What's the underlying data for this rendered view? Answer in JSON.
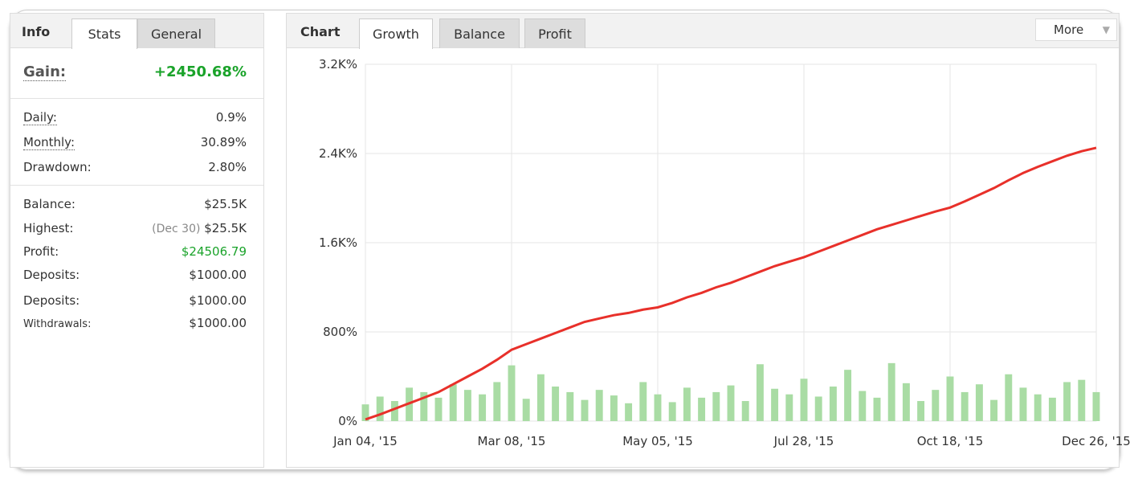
{
  "left_panel": {
    "title": "Info",
    "tabs": [
      "Stats",
      "General"
    ],
    "gain": {
      "label": "Gain:",
      "value": "+2450.68%"
    },
    "groups": [
      [
        {
          "label": "Daily:",
          "value": "0.9%"
        },
        {
          "label": "Monthly:",
          "value": "30.89%"
        },
        {
          "label": "Drawdown:",
          "value": "2.80%"
        }
      ],
      [
        {
          "label": "Balance:",
          "value": "$25.5K"
        },
        {
          "label": "Highest:",
          "note": "(Dec 30)",
          "value": "$25.5K"
        },
        {
          "label": "Profit:",
          "value": "$24506.79"
        },
        {
          "label": "Deposits:",
          "value": "$1000.00"
        },
        {
          "label": "Deposits:",
          "value": "$1000.00"
        },
        {
          "label": "Withdrawals:",
          "value": "$1000.00"
        }
      ]
    ]
  },
  "right_panel": {
    "title": "Chart",
    "tabs": [
      "Growth",
      "Balance",
      "Profit"
    ],
    "more": "More"
  },
  "chart_data": {
    "type": "line",
    "x": [
      0,
      1,
      2,
      3,
      4,
      5,
      6,
      7,
      8,
      9,
      10,
      11,
      12,
      13,
      14,
      15,
      16,
      17,
      18,
      19,
      20,
      21,
      22,
      23,
      24,
      25,
      26,
      27,
      28,
      29,
      30,
      31,
      32,
      33,
      34,
      35,
      36,
      37,
      38,
      39,
      40,
      41,
      42,
      43,
      44,
      45,
      46,
      47,
      48,
      49,
      50
    ],
    "series": [
      {
        "type": "bar",
        "color": "#a9dca4",
        "values": [
          150,
          220,
          180,
          300,
          260,
          210,
          330,
          280,
          240,
          350,
          500,
          200,
          420,
          310,
          260,
          190,
          280,
          230,
          160,
          350,
          240,
          170,
          300,
          210,
          260,
          320,
          180,
          510,
          290,
          240,
          380,
          220,
          310,
          460,
          270,
          210,
          520,
          340,
          180,
          280,
          400,
          260,
          330,
          190,
          420,
          300,
          240,
          210,
          350,
          370,
          260
        ]
      },
      {
        "type": "line",
        "color": "#e8302a",
        "values": [
          15,
          60,
          110,
          160,
          210,
          260,
          330,
          400,
          470,
          550,
          640,
          690,
          740,
          790,
          840,
          890,
          920,
          950,
          970,
          1000,
          1020,
          1060,
          1110,
          1150,
          1200,
          1240,
          1290,
          1340,
          1390,
          1430,
          1470,
          1520,
          1570,
          1620,
          1670,
          1720,
          1760,
          1800,
          1840,
          1880,
          1915,
          1970,
          2030,
          2090,
          2160,
          2225,
          2280,
          2330,
          2380,
          2420,
          2451
        ]
      }
    ],
    "xlim": [
      0,
      50
    ],
    "xticks": [
      {
        "value": 0,
        "label": "Jan 04, '15"
      },
      {
        "value": 10,
        "label": "Mar 08, '15"
      },
      {
        "value": 20,
        "label": "May 05, '15"
      },
      {
        "value": 30,
        "label": "Jul 28, '15"
      },
      {
        "value": 40,
        "label": "Oct 18, '15"
      },
      {
        "value": 50,
        "label": "Dec 26, '15"
      }
    ],
    "ylim": [
      0,
      3200
    ],
    "yticks": [
      {
        "value": 0,
        "label": "0%"
      },
      {
        "value": 800,
        "label": "800%"
      },
      {
        "value": 1600,
        "label": "1.6K%"
      },
      {
        "value": 2400,
        "label": "2.4K%"
      },
      {
        "value": 3200,
        "label": "3.2K%"
      }
    ],
    "grid": true
  }
}
